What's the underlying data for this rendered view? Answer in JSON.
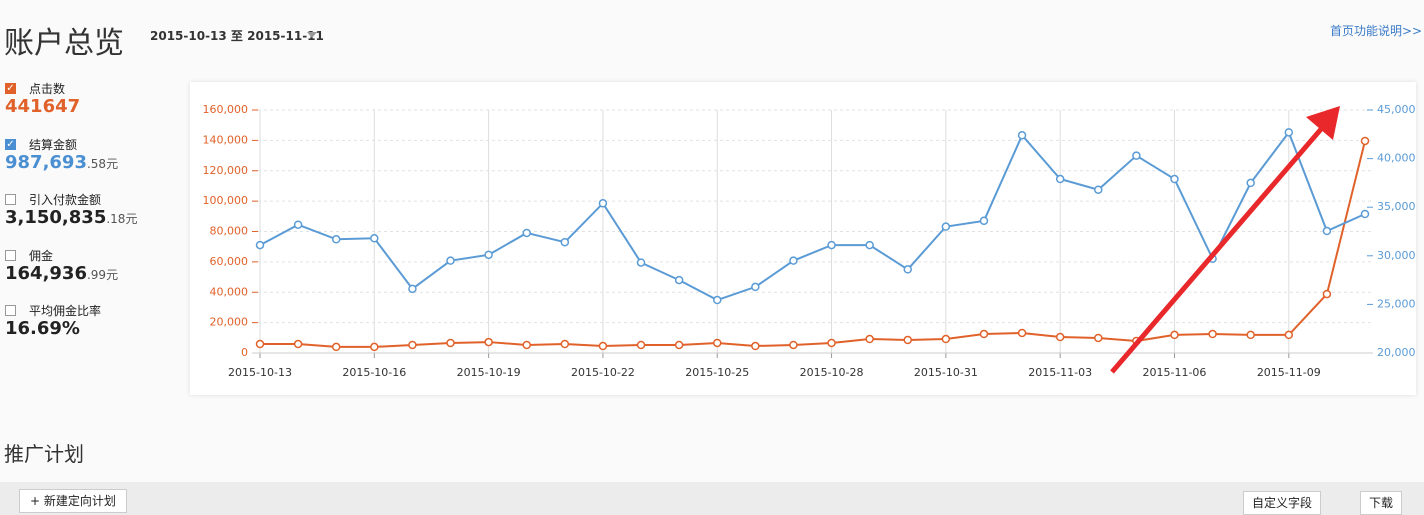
{
  "header": {
    "title": "账户总览",
    "date_range": "2015-10-13 至 2015-11-11",
    "help_link": "首页功能说明>>"
  },
  "metrics": [
    {
      "label": "点击数",
      "value": "441647",
      "checked": true,
      "color": "#e0622a"
    },
    {
      "label": "结算金额",
      "value": "987,693",
      "decimal": ".58元",
      "checked": true,
      "color": "#4a8fd1"
    },
    {
      "label": "引入付款金额",
      "value": "3,150,835",
      "decimal": ".18元",
      "checked": false,
      "color": "#222222"
    },
    {
      "label": "佣金",
      "value": "164,936",
      "decimal": ".99元",
      "checked": false,
      "color": "#222222"
    },
    {
      "label": "平均佣金比率",
      "value": "16.69%",
      "checked": false,
      "color": "#222222"
    }
  ],
  "chart_data": {
    "type": "line",
    "categories": [
      "2015-10-13",
      null,
      null,
      "2015-10-16",
      null,
      null,
      "2015-10-19",
      null,
      null,
      "2015-10-22",
      null,
      null,
      "2015-10-25",
      null,
      null,
      "2015-10-28",
      null,
      null,
      "2015-10-31",
      null,
      null,
      "2015-11-03",
      null,
      null,
      "2015-11-06",
      null,
      null,
      "2015-11-09",
      null,
      null
    ],
    "series": [
      {
        "name": "点击数",
        "color": "#e0622a",
        "values": [
          5900,
          5900,
          4000,
          4000,
          5300,
          6600,
          7200,
          5300,
          5900,
          4600,
          5300,
          5300,
          6600,
          4600,
          5300,
          6600,
          9200,
          8600,
          9200,
          12500,
          13200,
          10500,
          9900,
          7900,
          11900,
          12500,
          11900,
          11900,
          38800,
          139600
        ]
      },
      {
        "name": "结算金额",
        "color": "#5b9bd5",
        "axis": "y2",
        "values": [
          31100,
          33200,
          31700,
          31800,
          26600,
          29500,
          30100,
          32350,
          31400,
          35400,
          29300,
          27500,
          25450,
          26800,
          29500,
          31100,
          31100,
          28600,
          33000,
          33600,
          42400,
          37900,
          36800,
          40300,
          37900,
          29700,
          37500,
          42700,
          32550,
          34300
        ]
      }
    ],
    "ylim": [
      0,
      160000
    ],
    "yticks": [
      0,
      {
        "value": 20000,
        "label": "20,000"
      },
      {
        "value": 40000,
        "label": "40,000"
      },
      {
        "value": 60000,
        "label": "60,000"
      },
      {
        "value": 80000,
        "label": "80,000"
      },
      {
        "value": 100000,
        "label": "100,000"
      },
      {
        "value": 120000,
        "label": "120,000"
      },
      {
        "value": 140000,
        "label": "140,000"
      },
      {
        "value": 160000,
        "label": "160,000"
      }
    ],
    "y2lim": [
      20000,
      45000
    ],
    "y2ticks": [
      {
        "value": 20000,
        "label": "20,000"
      },
      {
        "value": 25000,
        "label": "25,000"
      },
      {
        "value": 30000,
        "label": "30,000"
      },
      {
        "value": 35000,
        "label": "35,000"
      },
      {
        "value": 40000,
        "label": "40,000"
      },
      {
        "value": 45000,
        "label": "45,000"
      }
    ],
    "grid": true
  },
  "section": {
    "title": "推广计划",
    "new_button": "新建定向计划",
    "custom_fields": "自定义字段",
    "download": "下载"
  }
}
